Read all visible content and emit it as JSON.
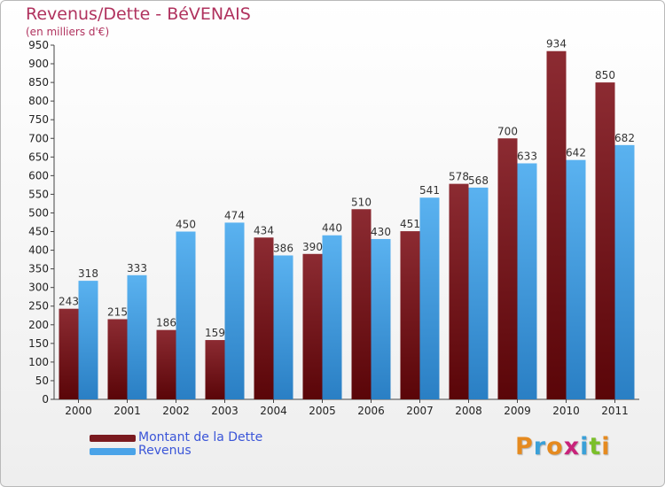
{
  "header": {
    "title": "Revenus/Dette - BéVENAIS",
    "subtitle": "(en milliers d'€)"
  },
  "chart_data": {
    "type": "bar",
    "title": "Revenus/Dette - BéVENAIS",
    "subtitle": "(en milliers d'€)",
    "categories": [
      "2000",
      "2001",
      "2002",
      "2003",
      "2004",
      "2005",
      "2006",
      "2007",
      "2008",
      "2009",
      "2010",
      "2011"
    ],
    "series": [
      {
        "name": "Montant de la Dette",
        "values": [
          243,
          215,
          186,
          159,
          434,
          390,
          510,
          451,
          578,
          700,
          934,
          850
        ],
        "color": "#7a1a1f"
      },
      {
        "name": "Revenus",
        "values": [
          318,
          333,
          450,
          474,
          386,
          440,
          430,
          541,
          568,
          633,
          642,
          682
        ],
        "color": "#4aa3e8"
      }
    ],
    "ylim": [
      0,
      950
    ],
    "ytick_step": 50,
    "grid": false,
    "legend": "bottom-left",
    "show_data_labels": true
  },
  "legend": {
    "items": [
      {
        "label": "Montant de la Dette",
        "color": "#7a1a1f",
        "label_color": "#3a55d8"
      },
      {
        "label": "Revenus",
        "color": "#4aa3e8",
        "label_color": "#3a55d8"
      }
    ]
  },
  "logo": {
    "text": "Proxiti",
    "letters": [
      {
        "ch": "P",
        "color": "#e58a1f"
      },
      {
        "ch": "r",
        "color": "#3aa0d8"
      },
      {
        "ch": "o",
        "color": "#e58a1f"
      },
      {
        "ch": "x",
        "color": "#c8237a"
      },
      {
        "ch": "i",
        "color": "#3aa0d8"
      },
      {
        "ch": "t",
        "color": "#7bbf2a"
      },
      {
        "ch": "i",
        "color": "#e58a1f"
      }
    ]
  }
}
